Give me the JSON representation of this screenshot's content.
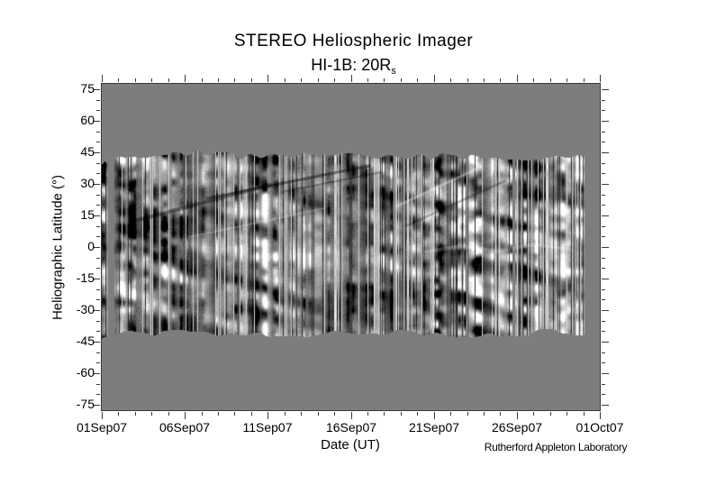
{
  "chart": {
    "title": "STEREO Heliospheric Imager",
    "subtitle_main": "HI-1B: 20R",
    "subtitle_sub": "s",
    "xlabel": "Date (UT)",
    "ylabel": "Heliographic Latitude (°)",
    "credit": "Rutherford Appleton Laboratory"
  },
  "chart_data": {
    "type": "heatmap",
    "title": "STEREO Heliospheric Imager",
    "subtitle": "HI-1B: 20Rs",
    "xlabel": "Date (UT)",
    "ylabel": "Heliographic Latitude (°)",
    "x_tick_labels": [
      "01Sep07",
      "06Sep07",
      "11Sep07",
      "16Sep07",
      "21Sep07",
      "26Sep07",
      "01Oct07"
    ],
    "x_minor_tick_days": 1,
    "x_major_tick_days": 5,
    "x_range_days": 30,
    "y_tick_values": [
      75,
      60,
      45,
      30,
      15,
      0,
      -15,
      -30,
      -45,
      -60,
      -75
    ],
    "y_minor_tick_deg": 5,
    "y_major_tick_deg": 15,
    "ylim": [
      -77.5,
      77.5
    ],
    "colormap": "grayscale",
    "plot_background": "#7d7d7d",
    "band_latitude_extent": [
      -41,
      44
    ],
    "data_start_day": 0,
    "data_end_day": 29.1,
    "data_gaps_days": [
      [
        0.38,
        0.76
      ],
      [
        24.74,
        24.9
      ]
    ],
    "legend": "none",
    "grid": "off",
    "credit": "Rutherford Appleton Laboratory",
    "description": "Grayscale running-difference synoptic map: brightness vs heliographic latitude and date at 20 solar radii from HI-1B; dense vertical black/white striping with diagonal streak features between about -41 and +44 degrees latitude."
  }
}
